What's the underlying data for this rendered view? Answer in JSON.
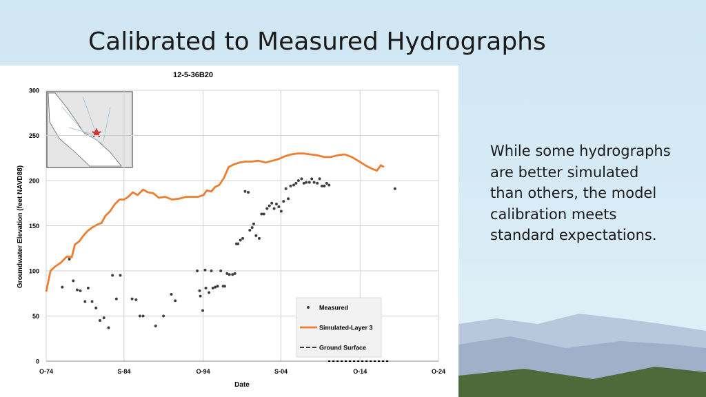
{
  "slide": {
    "title": "Calibrated to Measured Hydrographs",
    "body_lines": [
      "While some hydrographs",
      "are better simulated",
      "than others, the model",
      "calibration meets",
      "standard expectations."
    ]
  },
  "chart_data": {
    "type": "scatter",
    "title": "12-5-36B20",
    "x_label": "Date",
    "y_label": "Groundwater Elevation (feet NAVD88)",
    "xlim": [
      1974.75,
      2024.75
    ],
    "xticks": [
      {
        "value": 1974.75,
        "label": "O-74"
      },
      {
        "value": 1984.67,
        "label": "S-84"
      },
      {
        "value": 1994.75,
        "label": "O-94"
      },
      {
        "value": 2004.67,
        "label": "S-04"
      },
      {
        "value": 2014.75,
        "label": "O-14"
      },
      {
        "value": 2024.75,
        "label": "O-24"
      }
    ],
    "ylim": [
      0,
      300
    ],
    "yticks": [
      0,
      50,
      100,
      150,
      200,
      250,
      300
    ],
    "grid": true,
    "legend": "lower right",
    "series": [
      {
        "name": "Measured",
        "color": "#404040",
        "mode": "markers",
        "x": [
          1976.8,
          1977.7,
          1978.2,
          1978.7,
          1979.1,
          1979.7,
          1980.1,
          1980.6,
          1981.1,
          1981.6,
          1982.1,
          1982.7,
          1983.2,
          1983.7,
          1984.2,
          1985.7,
          1986.2,
          1986.7,
          1987.1,
          1988.7,
          1989.7,
          1990.7,
          1991.2,
          1994.0,
          1994.3,
          1994.4,
          1994.7,
          1995.0,
          1995.1,
          1995.5,
          1995.8,
          1996.0,
          1996.3,
          1996.6,
          1997.0,
          1997.3,
          1997.5,
          1997.8,
          1998.1,
          1998.5,
          1998.8,
          1999.0,
          1999.2,
          1999.5,
          1999.8,
          2000.1,
          2000.5,
          2000.7,
          2001.0,
          2001.2,
          2001.5,
          2001.9,
          2002.2,
          2002.5,
          2002.9,
          2003.2,
          2003.5,
          2003.8,
          2004.1,
          2004.4,
          2004.7,
          2005.0,
          2005.3,
          2005.6,
          2005.9,
          2006.3,
          2006.6,
          2006.9,
          2007.3,
          2007.6,
          2007.9,
          2008.3,
          2008.6,
          2008.9,
          2009.3,
          2009.6,
          2009.9,
          2010.2,
          2010.5,
          2010.8,
          2019.2
        ],
        "values": [
          82,
          113,
          89,
          79,
          78,
          66,
          81,
          66,
          59,
          45,
          48,
          37,
          95,
          69,
          95,
          69,
          68,
          50,
          50,
          39,
          50,
          74,
          67,
          100,
          78,
          72,
          56,
          101,
          81,
          76,
          100,
          81,
          82,
          83,
          100,
          83,
          83,
          97,
          96,
          96,
          97,
          130,
          130,
          134,
          136,
          188,
          187,
          145,
          148,
          152,
          139,
          136,
          163,
          163,
          169,
          172,
          175,
          169,
          174,
          171,
          166,
          177,
          191,
          180,
          194,
          195,
          197,
          200,
          202,
          197,
          198,
          198,
          202,
          198,
          197,
          202,
          194,
          194,
          197,
          195,
          191
        ]
      },
      {
        "name": "Simulated-Layer 3",
        "color": "#ed7d31",
        "mode": "line",
        "x": [
          1974.75,
          1975.3,
          1975.9,
          1976.6,
          1977.4,
          1978.0,
          1978.4,
          1979.0,
          1979.4,
          1980.0,
          1980.6,
          1981.2,
          1981.8,
          1982.3,
          1982.9,
          1983.5,
          1984.1,
          1984.7,
          1985.2,
          1985.8,
          1986.4,
          1987.1,
          1987.7,
          1988.4,
          1989.1,
          1989.9,
          1990.8,
          1991.7,
          1992.6,
          1993.3,
          1994.1,
          1994.8,
          1995.2,
          1995.8,
          1996.3,
          1996.8,
          1997.4,
          1998.0,
          1998.7,
          1999.4,
          2000.1,
          2000.9,
          2001.8,
          2002.7,
          2003.6,
          2004.4,
          2005.2,
          2006.0,
          2006.8,
          2007.6,
          2008.4,
          2009.3,
          2010.2,
          2011.0,
          2011.9,
          2012.8,
          2013.7,
          2014.5,
          2015.4,
          2016.3,
          2016.9,
          2017.4,
          2017.8
        ],
        "values": [
          77,
          100,
          105,
          109,
          116,
          115,
          129,
          133,
          138,
          144,
          148,
          151,
          153,
          161,
          166,
          174,
          179,
          179,
          182,
          187,
          184,
          190,
          187,
          186,
          181,
          182,
          179,
          180,
          182,
          182,
          182,
          184,
          189,
          188,
          193,
          195,
          203,
          215,
          218,
          220,
          221,
          221,
          222,
          220,
          222,
          224,
          227,
          229,
          230,
          230,
          229,
          228,
          226,
          226,
          228,
          229,
          226,
          222,
          217,
          213,
          211,
          217,
          215
        ]
      },
      {
        "name": "Ground Surface",
        "color": "#000000",
        "mode": "dashed",
        "x": [
          2010.7,
          2018.6
        ],
        "values": [
          0,
          0
        ]
      }
    ]
  }
}
